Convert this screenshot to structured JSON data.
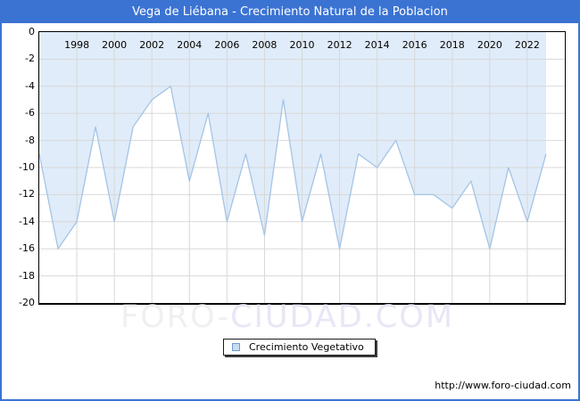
{
  "title": "Vega de Liébana - Crecimiento Natural de la Poblacion",
  "legend": {
    "label": "Crecimiento Vegetativo"
  },
  "watermark": {
    "part1": "FORO-",
    "part2": "CIUDAD.COM"
  },
  "source_url": "http://www.foro-ciudad.com",
  "colors": {
    "accent_blue": "#3b73d3",
    "series_line": "#a4c4e6",
    "series_fill": "#e0ecf9",
    "gridline": "#d8d8d8",
    "legend_swatch_fill": "#c8ddf2",
    "legend_swatch_border": "#6e9bd0",
    "watermark_gray": "#f0f0f2",
    "watermark_lavender": "#e7e7f6"
  },
  "chart_data": {
    "type": "area",
    "title": "Vega de Liébana - Crecimiento Natural de la Poblacion",
    "x": [
      1996,
      1997,
      1998,
      1999,
      2000,
      2001,
      2002,
      2003,
      2004,
      2005,
      2006,
      2007,
      2008,
      2009,
      2010,
      2011,
      2012,
      2013,
      2014,
      2015,
      2016,
      2017,
      2018,
      2019,
      2020,
      2021,
      2022,
      2023
    ],
    "series": [
      {
        "name": "Crecimiento Vegetativo",
        "values": [
          -9,
          -16,
          -14,
          -7,
          -14,
          -7,
          -5,
          -4,
          -11,
          -6,
          -14,
          -9,
          -15,
          -5,
          -14,
          -9,
          -16,
          -9,
          -10,
          -8,
          -12,
          -12,
          -13,
          -11,
          -16,
          -10,
          -14,
          -9
        ]
      }
    ],
    "x_tick_labels": [
      "1998",
      "2000",
      "2002",
      "2004",
      "2006",
      "2008",
      "2010",
      "2012",
      "2014",
      "2016",
      "2018",
      "2020",
      "2022"
    ],
    "y_tick_labels": [
      "0",
      "-2",
      "-4",
      "-6",
      "-8",
      "-10",
      "-12",
      "-14",
      "-16",
      "-18",
      "-20"
    ],
    "xlim": [
      1996,
      2024
    ],
    "ylim": [
      -20,
      0
    ],
    "grid": true,
    "legend_position": "bottom-center",
    "x_labels_position": "top-inside",
    "fill_between": "line-and-zero-axis"
  }
}
